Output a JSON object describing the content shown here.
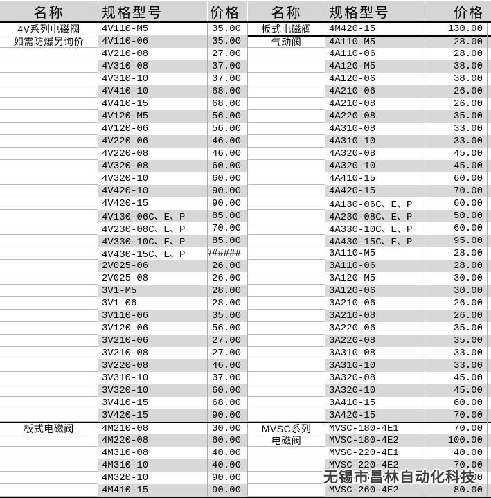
{
  "columns": {
    "name": "名称",
    "spec": "规格型号",
    "price": "价格"
  },
  "watermark": "无锡市昌林自动化科技",
  "colors": {
    "header_bg": "#d5d5d5",
    "row_alt_bg": "#d8d8d8",
    "grid_line": "#ababab",
    "section_border": "#000000",
    "watermark_text": "#3f3f3f"
  },
  "left_table": {
    "rows": [
      {
        "name": "4V系列电磁阀",
        "model": "4V110-M5",
        "price": "35.00"
      },
      {
        "name": "如需防爆另询价",
        "model": "4V110-06",
        "price": "35.00"
      },
      {
        "name": "",
        "model": "4V210-08",
        "price": "27.00"
      },
      {
        "name": "",
        "model": "4V310-08",
        "price": "37.00"
      },
      {
        "name": "",
        "model": "4V310-10",
        "price": "37.00"
      },
      {
        "name": "",
        "model": "4V410-10",
        "price": "68.00"
      },
      {
        "name": "",
        "model": "4V410-15",
        "price": "68.00"
      },
      {
        "name": "",
        "model": "4V120-M5",
        "price": "56.00"
      },
      {
        "name": "",
        "model": "4V120-06",
        "price": "56.00"
      },
      {
        "name": "",
        "model": "4V220-06",
        "price": "46.00"
      },
      {
        "name": "",
        "model": "4V220-08",
        "price": "46.00"
      },
      {
        "name": "",
        "model": "4V320-08",
        "price": "60.00"
      },
      {
        "name": "",
        "model": "4V320-10",
        "price": "60.00"
      },
      {
        "name": "",
        "model": "4V420-10",
        "price": "90.00"
      },
      {
        "name": "",
        "model": "4V420-15",
        "price": "90.00"
      },
      {
        "name": "",
        "model": "4V130-06C、E、P",
        "price": "85.00"
      },
      {
        "name": "",
        "model": "4V230-08C、E、P",
        "price": "70.00"
      },
      {
        "name": "",
        "model": "4V330-10C、E、P",
        "price": "85.00"
      },
      {
        "name": "",
        "model": "4V430-15C、E、P",
        "price": "######"
      },
      {
        "name": "",
        "model": "2V025-06",
        "price": "26.00"
      },
      {
        "name": "",
        "model": "2V025-08",
        "price": "26.00"
      },
      {
        "name": "",
        "model": "3V1-M5",
        "price": "28.00"
      },
      {
        "name": "",
        "model": "3V1-06",
        "price": "28.00"
      },
      {
        "name": "",
        "model": "3V110-06",
        "price": "35.00"
      },
      {
        "name": "",
        "model": "3V120-06",
        "price": "56.00"
      },
      {
        "name": "",
        "model": "3V210-06",
        "price": "27.00"
      },
      {
        "name": "",
        "model": "3V210-08",
        "price": "27.00"
      },
      {
        "name": "",
        "model": "3V220-08",
        "price": "46.00"
      },
      {
        "name": "",
        "model": "3V310-10",
        "price": "37.00"
      },
      {
        "name": "",
        "model": "3V320-10",
        "price": "60.00"
      },
      {
        "name": "",
        "model": "3V410-15",
        "price": "68.00"
      },
      {
        "name": "",
        "model": "3V420-15",
        "price": "90.00"
      },
      {
        "name": "板式电磁阀",
        "model": "4M210-08",
        "price": "30.00",
        "divider": true
      },
      {
        "name": "",
        "model": "4M220-08",
        "price": "60.00"
      },
      {
        "name": "",
        "model": "4M310-08",
        "price": "40.00"
      },
      {
        "name": "",
        "model": "4M310-10",
        "price": "40.00"
      },
      {
        "name": "",
        "model": "4M320-10",
        "price": "90.00"
      },
      {
        "name": "",
        "model": "4M410-15",
        "price": "90.00"
      }
    ]
  },
  "right_table": {
    "rows": [
      {
        "name": "板式电磁阀",
        "model": "4M420-15",
        "price": "130.00"
      },
      {
        "name": "气动阀",
        "model": "4A110-M5",
        "price": "28.00",
        "divider": true
      },
      {
        "name": "",
        "model": "4A110-06",
        "price": "28.00"
      },
      {
        "name": "",
        "model": "4A120-M5",
        "price": "38.00"
      },
      {
        "name": "",
        "model": "4A120-06",
        "price": "38.00"
      },
      {
        "name": "",
        "model": "4A210-06",
        "price": "26.00"
      },
      {
        "name": "",
        "model": "4A210-08",
        "price": "26.00"
      },
      {
        "name": "",
        "model": "4A220-08",
        "price": "35.00"
      },
      {
        "name": "",
        "model": "4A310-08",
        "price": "33.00"
      },
      {
        "name": "",
        "model": "4A310-10",
        "price": "33.00"
      },
      {
        "name": "",
        "model": "4A320-08",
        "price": "45.00"
      },
      {
        "name": "",
        "model": "4A320-10",
        "price": "45.00"
      },
      {
        "name": "",
        "model": "4A410-15",
        "price": "60.00"
      },
      {
        "name": "",
        "model": "4A420-15",
        "price": "70.00"
      },
      {
        "name": "",
        "model": "4A130-06C、E、P",
        "price": "60.00"
      },
      {
        "name": "",
        "model": "4A230-08C、E、P",
        "price": "50.00"
      },
      {
        "name": "",
        "model": "4A330-10C、E、P",
        "price": "60.00"
      },
      {
        "name": "",
        "model": "4A430-15C、E、P",
        "price": "95.00"
      },
      {
        "name": "",
        "model": "3A110-M5",
        "price": "28.00"
      },
      {
        "name": "",
        "model": "3A110-06",
        "price": "28.00"
      },
      {
        "name": "",
        "model": "3A120-M5",
        "price": "30.00"
      },
      {
        "name": "",
        "model": "3A120-06",
        "price": "30.00"
      },
      {
        "name": "",
        "model": "3A210-06",
        "price": "26.00"
      },
      {
        "name": "",
        "model": "3A210-08",
        "price": "26.00"
      },
      {
        "name": "",
        "model": "3A220-06",
        "price": "35.00"
      },
      {
        "name": "",
        "model": "3A220-08",
        "price": "35.00"
      },
      {
        "name": "",
        "model": "3A310-08",
        "price": "33.00"
      },
      {
        "name": "",
        "model": "3A310-10",
        "price": "33.00"
      },
      {
        "name": "",
        "model": "3A320-08",
        "price": "45.00"
      },
      {
        "name": "",
        "model": "3A320-10",
        "price": "45.00"
      },
      {
        "name": "",
        "model": "3A410-15",
        "price": "60.00"
      },
      {
        "name": "",
        "model": "3A420-15",
        "price": "70.00"
      },
      {
        "name": "MVSC系列",
        "model": "MVSC-180-4E1",
        "price": "70.00",
        "divider": true
      },
      {
        "name": "电磁阀",
        "model": "MVSC-180-4E2",
        "price": "100.00"
      },
      {
        "name": "",
        "model": "MVSC-220-4E1",
        "price": "40.00"
      },
      {
        "name": "",
        "model": "MVSC-220-4E2",
        "price": "70.00"
      },
      {
        "name": "",
        "model": "MVSC-260-4E1",
        "price": "50.00"
      },
      {
        "name": "",
        "model": "MVSC-260-4E2",
        "price": "80.00"
      }
    ]
  }
}
